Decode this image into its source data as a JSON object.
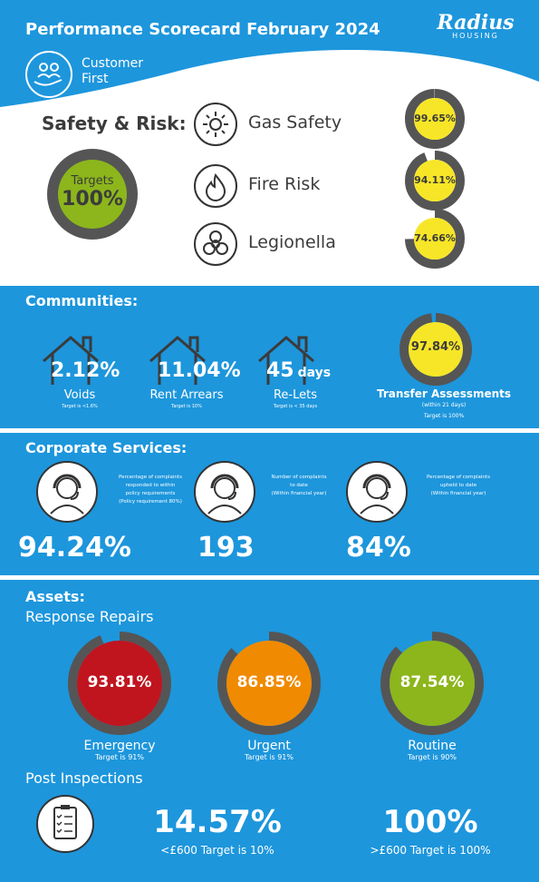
{
  "header": {
    "title": "Performance Scorecard February 2024",
    "brand_main": "Radius",
    "brand_sub": "HOUSING",
    "badge_line1": "Customer",
    "badge_line2": "First"
  },
  "safety": {
    "heading": "Safety & Risk:",
    "target_label": "Targets",
    "target_value": "100%",
    "items": [
      {
        "label": "Gas Safety",
        "value": "99.65%",
        "percent": 99.65,
        "icon": "sun-icon"
      },
      {
        "label": "Fire Risk",
        "value": "94.11%",
        "percent": 94.11,
        "icon": "flame-icon"
      },
      {
        "label": "Legionella",
        "value": "74.66%",
        "percent": 74.66,
        "icon": "biohazard-icon"
      }
    ]
  },
  "communities": {
    "heading": "Communities:",
    "items": [
      {
        "value": "2.12%",
        "label": "Voids",
        "target": "Target is <1.6%"
      },
      {
        "value": "11.04%",
        "label": "Rent Arrears",
        "target": "Target is 10%"
      },
      {
        "value": "45",
        "unit": "days",
        "label": "Re-Lets",
        "target": "Target is < 35 days"
      }
    ],
    "transfer": {
      "value": "97.84%",
      "percent": 97.84,
      "label": "Transfer Assessments",
      "sub": "(within 21 days)",
      "target": "Target is 100%"
    }
  },
  "corporate": {
    "heading": "Corporate Services:",
    "items": [
      {
        "value": "94.24%",
        "desc": [
          "Percentage of complaints",
          "responded to within",
          "policy requirements",
          "(Policy requirement 80%)"
        ],
        "icon": "agent-headset-icon"
      },
      {
        "value": "193",
        "desc": [
          "Number of complaints",
          "to date",
          "(Within financial year)"
        ],
        "icon": "agent-headset-icon"
      },
      {
        "value": "84%",
        "desc": [
          "Percentage of complaints",
          "upheld to date",
          "(Within financial year)"
        ],
        "icon": "agent-headset-female-icon"
      }
    ]
  },
  "assets": {
    "heading": "Assets:",
    "subheading": "Response Repairs",
    "repairs": [
      {
        "value": "93.81%",
        "percent": 93.81,
        "label": "Emergency",
        "target": "Target is 91%",
        "color": "#c0151f"
      },
      {
        "value": "86.85%",
        "percent": 86.85,
        "label": "Urgent",
        "target": "Target is 91%",
        "color": "#f08a00"
      },
      {
        "value": "87.54%",
        "percent": 87.54,
        "label": "Routine",
        "target": "Target is 90%",
        "color": "#8cb61c"
      }
    ],
    "post_heading": "Post Inspections",
    "post": [
      {
        "value": "14.57%",
        "label": "<£600 Target is 10%"
      },
      {
        "value": "100%",
        "label": ">£600 Target is 100%"
      }
    ]
  },
  "colors": {
    "blue": "#1d96dc",
    "yellow": "#f7e627",
    "green": "#8cb61c",
    "ring_gray": "#555555"
  }
}
